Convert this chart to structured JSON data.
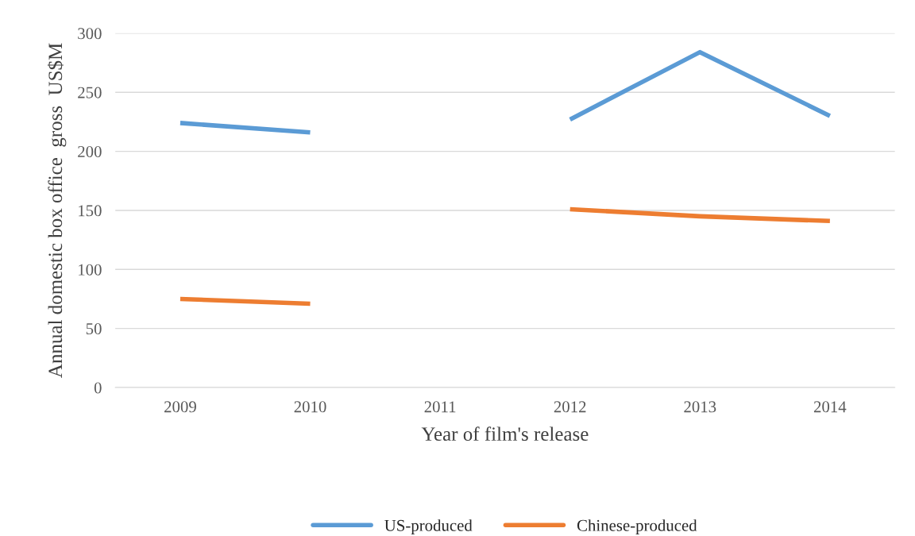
{
  "chart_data": {
    "type": "line",
    "xlabel": "Year of film's release",
    "ylabel": "Annual domestic box office  gross  US$M",
    "categories": [
      "2009",
      "2010",
      "2011",
      "2012",
      "2013",
      "2014"
    ],
    "series": [
      {
        "name": "US-produced",
        "color": "#5b9bd5",
        "values": [
          224,
          216,
          null,
          227,
          284,
          230
        ]
      },
      {
        "name": "Chinese-produced",
        "color": "#ed7d31",
        "values": [
          75,
          71,
          null,
          151,
          145,
          141
        ]
      }
    ],
    "ylim": [
      0,
      300
    ],
    "yticks": [
      0,
      50,
      100,
      150,
      200,
      250,
      300
    ],
    "grid": "y",
    "legend": "bottom",
    "marker": "none",
    "line_style": "solid"
  }
}
